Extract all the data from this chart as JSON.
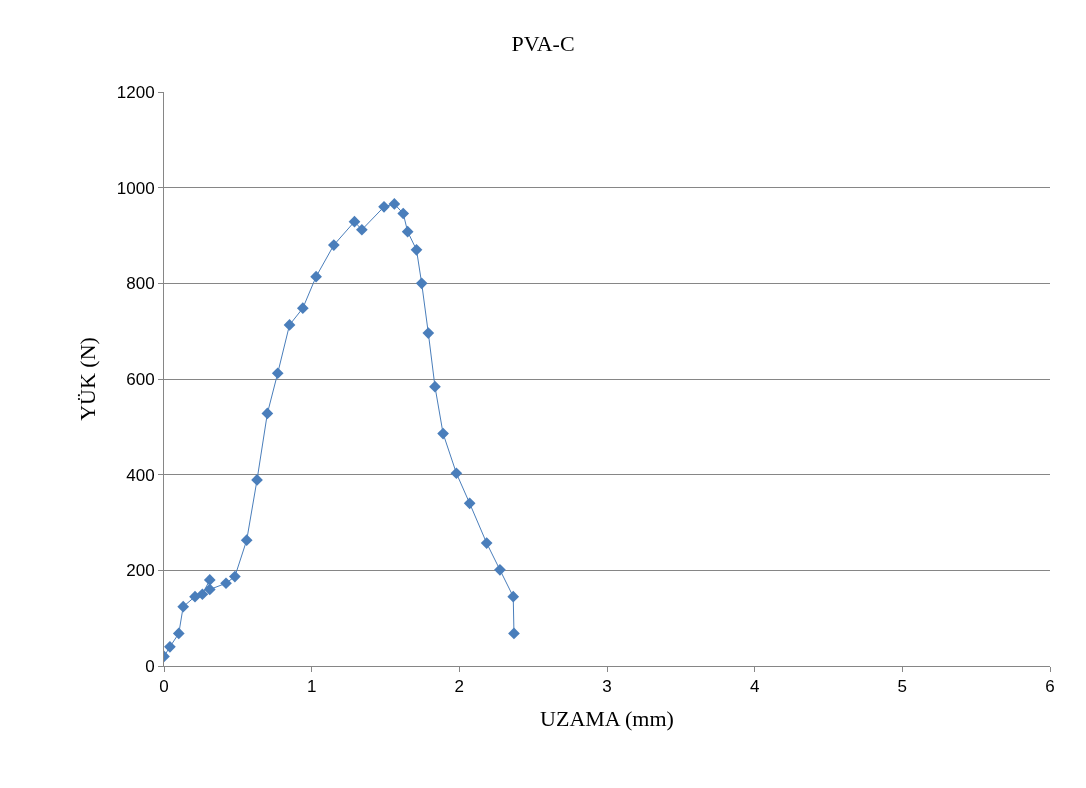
{
  "chart_data": {
    "type": "line",
    "title": "PVA-C",
    "xlabel": "UZAMA (mm)",
    "ylabel": "YÜK (N)",
    "x": [
      0.0,
      0.04,
      0.1,
      0.13,
      0.21,
      0.26,
      0.31,
      0.31,
      0.42,
      0.48,
      0.56,
      0.63,
      0.7,
      0.77,
      0.85,
      0.94,
      1.03,
      1.15,
      1.29,
      1.34,
      1.49,
      1.56,
      1.62,
      1.65,
      1.71,
      1.745,
      1.79,
      1.835,
      1.89,
      1.98,
      2.07,
      2.185,
      2.275,
      2.365,
      2.37
    ],
    "series": [
      {
        "color": "#4a7ebb",
        "values": [
          20,
          40,
          68,
          124,
          145,
          150,
          180,
          160,
          173,
          187,
          263,
          389,
          528,
          612,
          713,
          748,
          814,
          880,
          929,
          912,
          960,
          966,
          946,
          908,
          870,
          800,
          696,
          584,
          486,
          403,
          340,
          257,
          201,
          145,
          68
        ]
      }
    ],
    "xlim": [
      0,
      6
    ],
    "xticks": [
      0,
      1,
      2,
      3,
      4,
      5,
      6
    ],
    "ylim": [
      0,
      1200
    ],
    "yticks": [
      0,
      200,
      400,
      600,
      800,
      1000,
      1200
    ],
    "grid": "y",
    "legend": false,
    "marker": "diamond",
    "line_style": "solid"
  }
}
